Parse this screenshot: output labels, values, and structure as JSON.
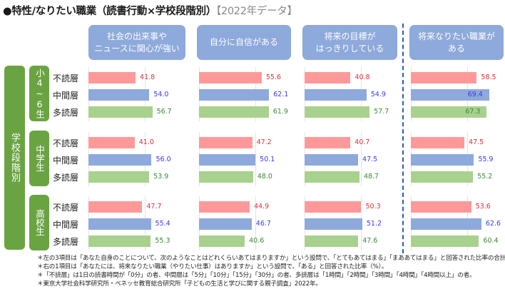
{
  "title": {
    "main": "●特性/なりたい職業（読書行動×学校段階別）",
    "tag": "【2022年データ】"
  },
  "colors": {
    "non_reader": "#ff9999",
    "middle": "#8ea9db",
    "heavy_reader": "#a9d18e",
    "non_reader_text": "#e0303a",
    "middle_text": "#3b3bf0",
    "heavy_reader_text": "#3a8a3a",
    "header_bg": "#8ea9db",
    "label_bg": "#6aa442",
    "divider": "#2e5cb8"
  },
  "axis_label": "学校段階別",
  "chart_data": {
    "type": "bar",
    "orientation": "horizontal",
    "title": "特性/なりたい職業（読書行動×学校段階別）【2022年データ】",
    "unit": "%",
    "xlim": [
      0,
      100
    ],
    "grid": true,
    "panels": [
      "社会の出来事や\nニュースに関心が強い",
      "自分に自信がある",
      "将来の目標が\nはっきりしている",
      "将来なりたい職業が\nある"
    ],
    "groups": [
      "小4~6生",
      "中学生",
      "高校生"
    ],
    "group_labels_display": [
      "小4~6生",
      "中学生",
      "高校生"
    ],
    "categories": [
      "不読層",
      "中間層",
      "多読層"
    ],
    "series": [
      {
        "name": "不読層",
        "group": "小4~6生",
        "values": [
          41.8,
          55.6,
          40.8,
          58.5
        ]
      },
      {
        "name": "中間層",
        "group": "小4~6生",
        "values": [
          54.0,
          62.1,
          54.9,
          69.4
        ]
      },
      {
        "name": "多読層",
        "group": "小4~6生",
        "values": [
          56.7,
          61.9,
          57.7,
          67.3
        ]
      },
      {
        "name": "不読層",
        "group": "中学生",
        "values": [
          41.0,
          47.2,
          40.7,
          47.5
        ]
      },
      {
        "name": "中間層",
        "group": "中学生",
        "values": [
          56.0,
          50.1,
          47.5,
          55.9
        ]
      },
      {
        "name": "多読層",
        "group": "中学生",
        "values": [
          53.9,
          48.0,
          48.7,
          55.2
        ]
      },
      {
        "name": "不読層",
        "group": "高校生",
        "values": [
          47.7,
          44.9,
          50.3,
          53.6
        ]
      },
      {
        "name": "中間層",
        "group": "高校生",
        "values": [
          55.4,
          46.7,
          51.2,
          62.6
        ]
      },
      {
        "name": "多読層",
        "group": "高校生",
        "values": [
          55.3,
          40.6,
          47.6,
          60.4
        ]
      }
    ],
    "value_labels": [
      [
        "41.8",
        "55.6",
        "40.8",
        "58.5"
      ],
      [
        "54.0",
        "62.1",
        "54.9",
        "69.4"
      ],
      [
        "56.7",
        "61.9",
        "57.7",
        "67.3"
      ],
      [
        "41.0",
        "47.2",
        "40.7",
        "47.5"
      ],
      [
        "56.0",
        "50.1",
        "47.5",
        "55.9"
      ],
      [
        "53.9",
        "48.0",
        "48.7",
        "55.2"
      ],
      [
        "47.7",
        "44.9",
        "50.3",
        "53.6"
      ],
      [
        "55.4",
        "46.7",
        "51.2",
        "62.6"
      ],
      [
        "55.3",
        "40.6",
        "47.6",
        "60.4"
      ]
    ]
  },
  "notes": [
    "＊左の3項目は「あなた自身のことについて、次のようなことはどれくらいあてはまりますか」という設問で、「とてもあてはまる」「まああてはまる」と回答された比率の合計（%）。",
    "＊右の1項目は「あなたには、将来なりたい職業（やりたい仕事）はありますか」という設問で、「ある」と回答された比率（%）。",
    "＊「不読層」は1日の読書時間が「0分」の者、中間層は「5分」「10分」「15分」「30分」の者、多読層は「1時間」「2時間」「3時間」「4時間」「4時間以上」の者。",
    "＊東京大学社会科学研究所・ベネッセ教育総合研究所「子どもの生活と学びに関する親子調査」2022年。"
  ]
}
